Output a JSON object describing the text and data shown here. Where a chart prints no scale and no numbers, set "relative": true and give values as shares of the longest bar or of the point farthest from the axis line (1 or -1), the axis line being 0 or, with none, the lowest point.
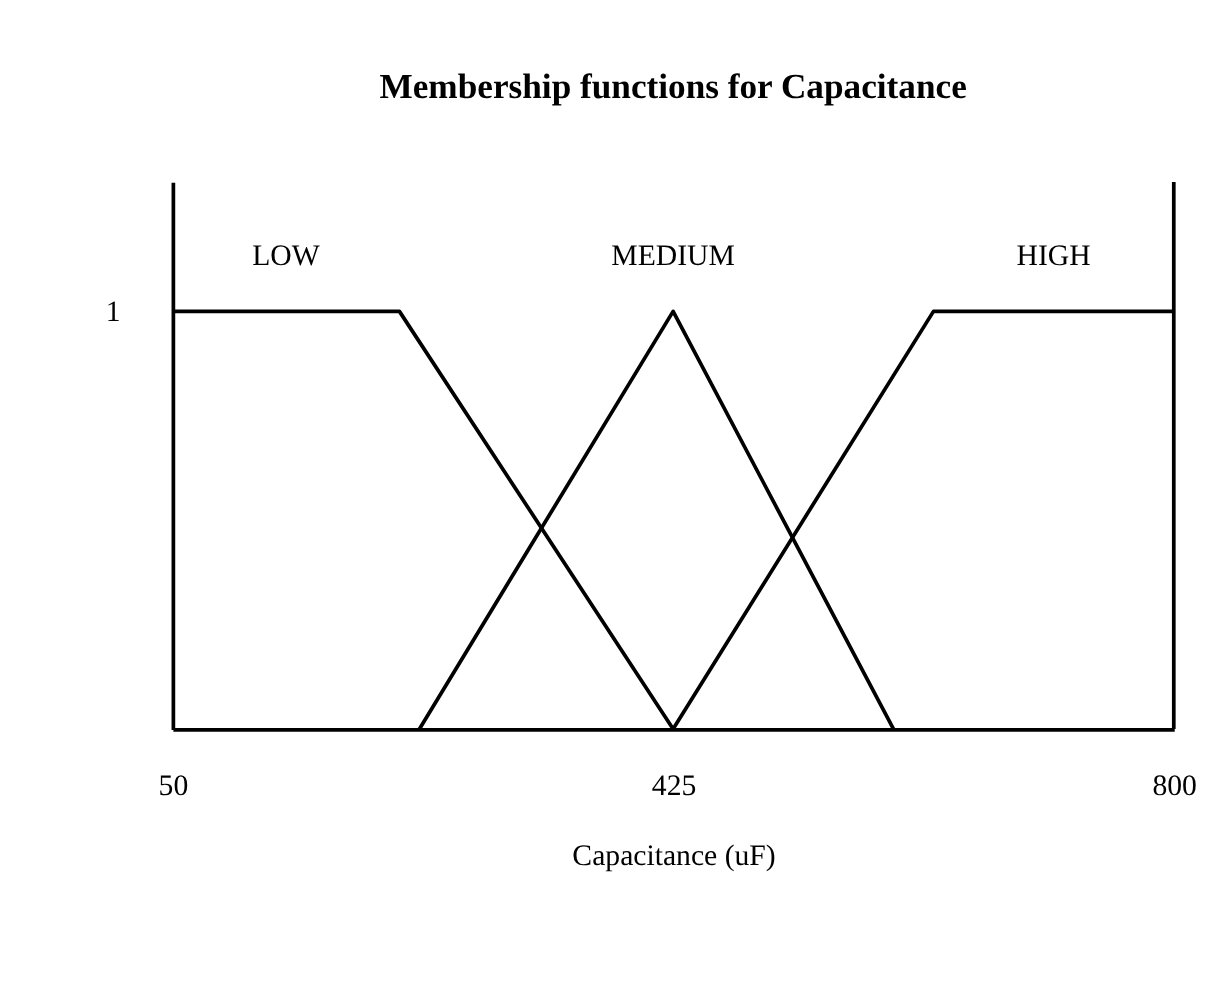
{
  "chart_data": {
    "type": "line",
    "title": "Membership functions for Capacitance",
    "xlabel": "Capacitance (uF)",
    "relative": true,
    "series": [
      {
        "name": "LOW",
        "color": "#000000",
        "x": [
          50,
          220,
          425
        ],
        "values": [
          1,
          1,
          0
        ]
      },
      {
        "name": "MEDIUM",
        "color": "#000000",
        "x": [
          235,
          425,
          590
        ],
        "values": [
          0,
          1,
          0
        ]
      },
      {
        "name": "HIGH",
        "color": "#000000",
        "x": [
          425,
          620,
          800
        ],
        "values": [
          0,
          1,
          1
        ]
      }
    ],
    "annotations": [
      "1"
    ],
    "xlim": [
      50,
      800
    ],
    "xticks": [
      50,
      425,
      800
    ],
    "grid": false,
    "marker": "none",
    "line_style": "solid"
  }
}
